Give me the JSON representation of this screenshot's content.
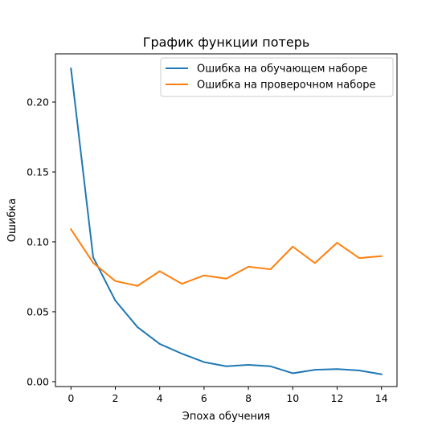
{
  "chart_data": {
    "type": "line",
    "title": "График функции потерь",
    "xlabel": "Эпоха обучения",
    "ylabel": "Ошибка",
    "xlim": [
      -0.7,
      14.7
    ],
    "ylim": [
      -0.0035,
      0.2345
    ],
    "xticks": [
      0,
      2,
      4,
      6,
      8,
      10,
      12,
      14
    ],
    "yticks": [
      0.0,
      0.05,
      0.1,
      0.15,
      0.2
    ],
    "ytick_labels": [
      "0.00",
      "0.05",
      "0.10",
      "0.15",
      "0.20"
    ],
    "grid": false,
    "legend_position": "top-right",
    "x": [
      0,
      1,
      2,
      3,
      4,
      5,
      6,
      7,
      8,
      9,
      10,
      11,
      12,
      13,
      14
    ],
    "series": [
      {
        "name": "Ошибка на обучающем наборе",
        "color": "#1f77b4",
        "values": [
          0.224,
          0.089,
          0.058,
          0.039,
          0.027,
          0.02,
          0.014,
          0.011,
          0.012,
          0.011,
          0.006,
          0.0085,
          0.009,
          0.008,
          0.0053
        ]
      },
      {
        "name": "Ошибка на проверочном наборе",
        "color": "#ff7f0e",
        "values": [
          0.109,
          0.085,
          0.072,
          0.0685,
          0.079,
          0.07,
          0.076,
          0.0737,
          0.0822,
          0.0804,
          0.0966,
          0.0848,
          0.0994,
          0.0884,
          0.0898
        ]
      }
    ]
  }
}
